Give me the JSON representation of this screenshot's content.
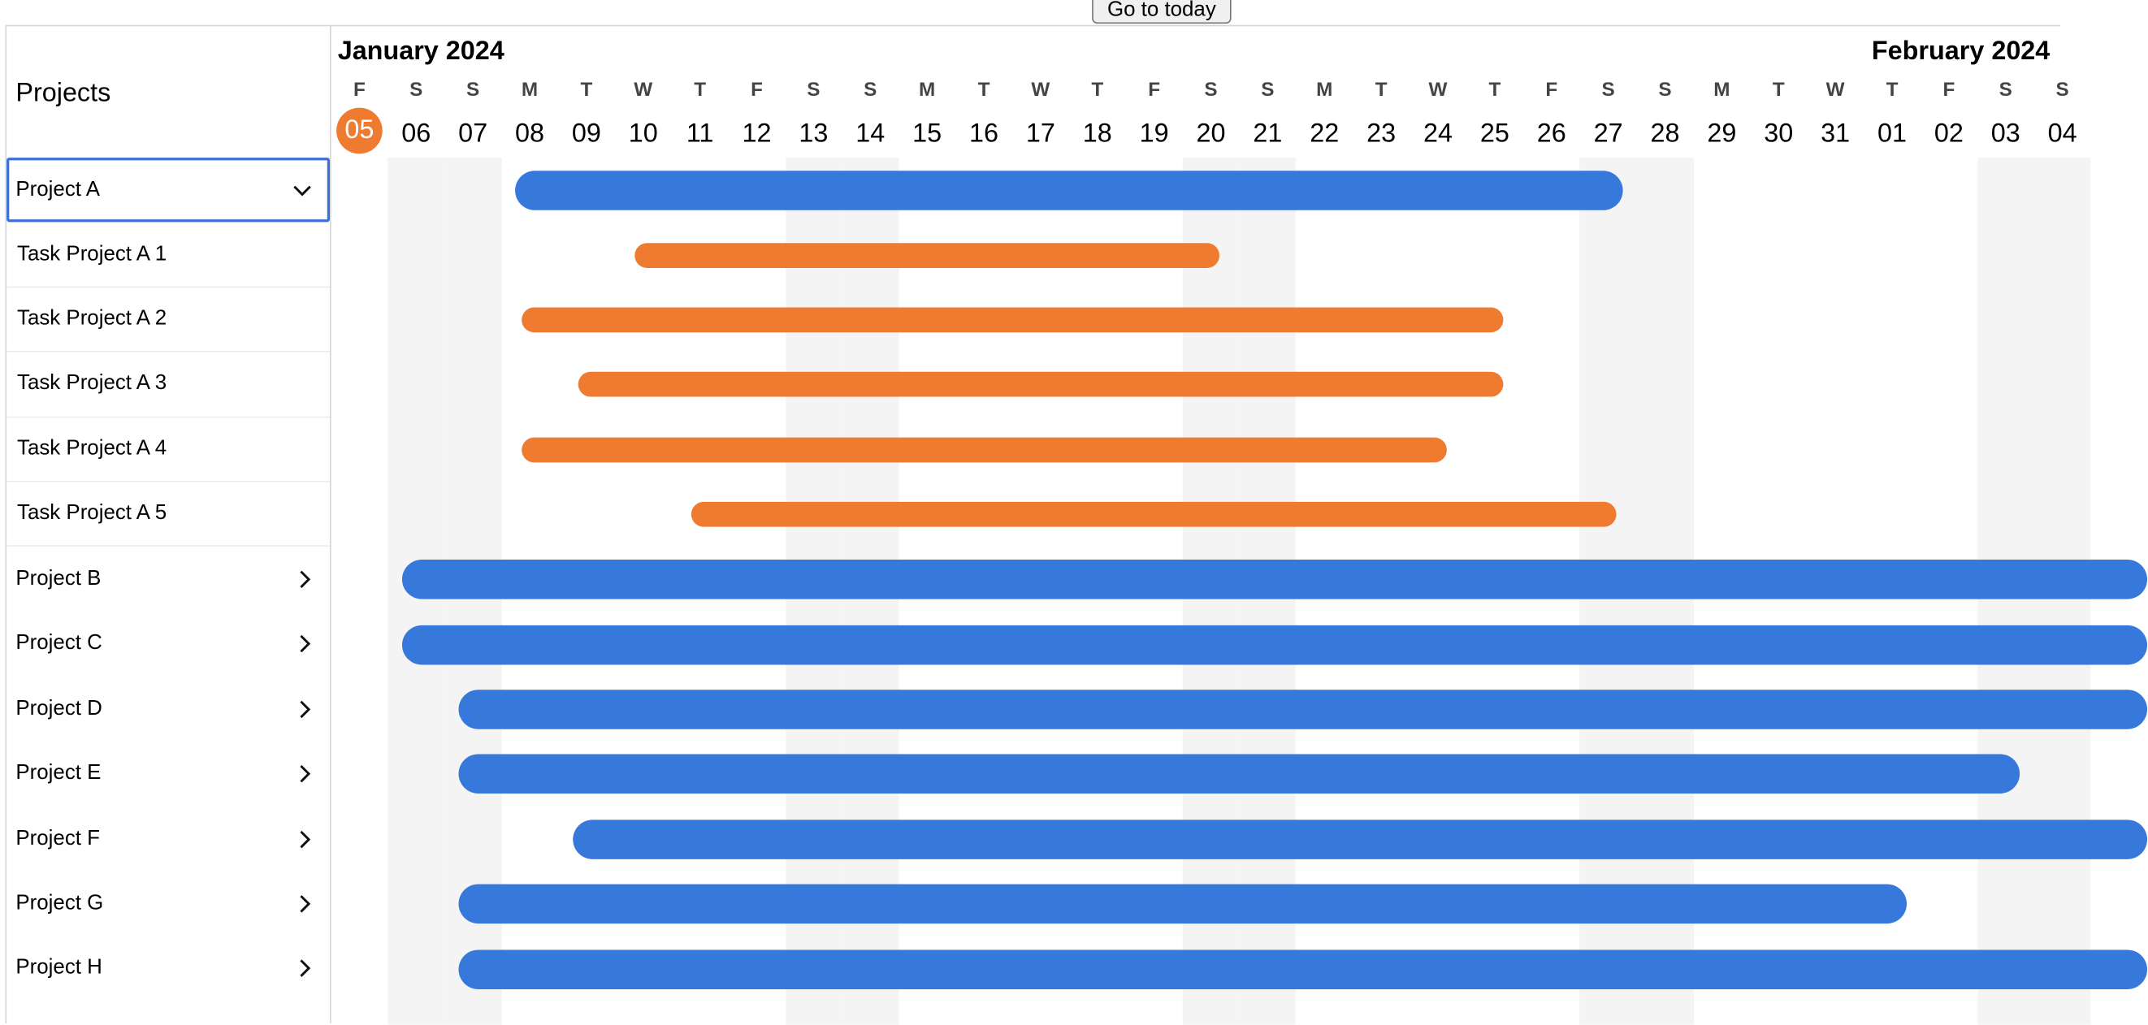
{
  "toolbar": {
    "today_label": "Go to today"
  },
  "sidebar": {
    "title": "Projects",
    "rows": [
      {
        "label": "Project A",
        "kind": "project",
        "expanded": true,
        "selected": true,
        "icon": "chevron-down-icon"
      },
      {
        "label": "Task Project A 1",
        "kind": "task"
      },
      {
        "label": "Task Project A 2",
        "kind": "task"
      },
      {
        "label": "Task Project A 3",
        "kind": "task"
      },
      {
        "label": "Task Project A 4",
        "kind": "task"
      },
      {
        "label": "Task Project A 5",
        "kind": "task"
      },
      {
        "label": "Project B",
        "kind": "project",
        "icon": "chevron-right-icon"
      },
      {
        "label": "Project C",
        "kind": "project",
        "icon": "chevron-right-icon"
      },
      {
        "label": "Project D",
        "kind": "project",
        "icon": "chevron-right-icon"
      },
      {
        "label": "Project E",
        "kind": "project",
        "icon": "chevron-right-icon"
      },
      {
        "label": "Project F",
        "kind": "project",
        "icon": "chevron-right-icon"
      },
      {
        "label": "Project G",
        "kind": "project",
        "icon": "chevron-right-icon"
      },
      {
        "label": "Project H",
        "kind": "project",
        "icon": "chevron-right-icon"
      }
    ]
  },
  "timeline": {
    "months": [
      "January 2024",
      "February 2024"
    ],
    "today": "05",
    "days": [
      {
        "dow": "F",
        "num": "05"
      },
      {
        "dow": "S",
        "num": "06"
      },
      {
        "dow": "S",
        "num": "07"
      },
      {
        "dow": "M",
        "num": "08"
      },
      {
        "dow": "T",
        "num": "09"
      },
      {
        "dow": "W",
        "num": "10"
      },
      {
        "dow": "T",
        "num": "11"
      },
      {
        "dow": "F",
        "num": "12"
      },
      {
        "dow": "S",
        "num": "13"
      },
      {
        "dow": "S",
        "num": "14"
      },
      {
        "dow": "M",
        "num": "15"
      },
      {
        "dow": "T",
        "num": "16"
      },
      {
        "dow": "W",
        "num": "17"
      },
      {
        "dow": "T",
        "num": "18"
      },
      {
        "dow": "F",
        "num": "19"
      },
      {
        "dow": "S",
        "num": "20"
      },
      {
        "dow": "S",
        "num": "21"
      },
      {
        "dow": "M",
        "num": "22"
      },
      {
        "dow": "T",
        "num": "23"
      },
      {
        "dow": "W",
        "num": "24"
      },
      {
        "dow": "T",
        "num": "25"
      },
      {
        "dow": "F",
        "num": "26"
      },
      {
        "dow": "S",
        "num": "27"
      },
      {
        "dow": "S",
        "num": "28"
      },
      {
        "dow": "M",
        "num": "29"
      },
      {
        "dow": "T",
        "num": "30"
      },
      {
        "dow": "W",
        "num": "31"
      },
      {
        "dow": "T",
        "num": "01"
      },
      {
        "dow": "F",
        "num": "02"
      },
      {
        "dow": "S",
        "num": "03"
      },
      {
        "dow": "S",
        "num": "04"
      }
    ],
    "bars": [
      {
        "row": 0,
        "start": 3.25,
        "end": 22.75
      },
      {
        "row": 1,
        "start": 5.35,
        "end": 15.65
      },
      {
        "row": 2,
        "start": 3.35,
        "end": 20.65
      },
      {
        "row": 3,
        "start": 4.35,
        "end": 20.65
      },
      {
        "row": 4,
        "start": 3.35,
        "end": 19.65
      },
      {
        "row": 5,
        "start": 6.35,
        "end": 22.65
      },
      {
        "row": 6,
        "start": 1.25,
        "end": 32.0
      },
      {
        "row": 7,
        "start": 1.25,
        "end": 32.0
      },
      {
        "row": 8,
        "start": 2.25,
        "end": 32.0
      },
      {
        "row": 9,
        "start": 2.25,
        "end": 29.75
      },
      {
        "row": 10,
        "start": 4.25,
        "end": 32.0
      },
      {
        "row": 11,
        "start": 2.25,
        "end": 27.75
      },
      {
        "row": 12,
        "start": 2.25,
        "end": 32.0
      }
    ]
  },
  "colors": {
    "project_bar": "#3679db",
    "task_bar": "#ef7b30",
    "today": "#ef7b30",
    "weekend": "#f4f4f4"
  }
}
